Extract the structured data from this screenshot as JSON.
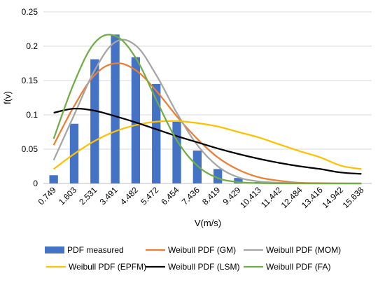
{
  "chart_data": {
    "type": "bar+line",
    "xlabel": "V(m/s)",
    "ylabel": "f(v)",
    "ylim": [
      0,
      0.25
    ],
    "yticks": [
      "0",
      "0.05",
      "0.1",
      "0.15",
      "0.2",
      "0.25"
    ],
    "categories": [
      "0.749",
      "1.603",
      "2.531",
      "3.491",
      "4.482",
      "5.472",
      "6.454",
      "7.436",
      "8.419",
      "9.429",
      "10.413",
      "11.442",
      "12.484",
      "13.416",
      "14.942",
      "15.638"
    ],
    "grid": "horizontal",
    "legend_position": "bottom",
    "series": [
      {
        "name": "PDF measured",
        "kind": "bar",
        "color": "#4472c4",
        "values": [
          0.012,
          0.087,
          0.181,
          0.217,
          0.184,
          0.145,
          0.09,
          0.048,
          0.021,
          0.008,
          0.002,
          0.001,
          0,
          0,
          0,
          0
        ]
      },
      {
        "name": "Weibull PDF (GM)",
        "kind": "line",
        "color": "#ed7d31",
        "values": [
          0.056,
          0.113,
          0.158,
          0.175,
          0.165,
          0.135,
          0.098,
          0.065,
          0.038,
          0.02,
          0.009,
          0.004,
          0.001,
          0.0005,
          0.0001,
          0
        ]
      },
      {
        "name": "Weibull PDF (MOM)",
        "kind": "line",
        "color": "#a5a5a5",
        "values": [
          0.034,
          0.1,
          0.165,
          0.206,
          0.201,
          0.158,
          0.103,
          0.056,
          0.025,
          0.009,
          0.003,
          0.001,
          0.0003,
          0,
          0,
          0
        ]
      },
      {
        "name": "Weibull PDF (EPFM)",
        "kind": "line",
        "color": "#ffc000",
        "values": [
          0.021,
          0.043,
          0.062,
          0.076,
          0.085,
          0.09,
          0.091,
          0.088,
          0.083,
          0.075,
          0.067,
          0.057,
          0.047,
          0.038,
          0.026,
          0.021
        ]
      },
      {
        "name": "Weibull PDF (LSM)",
        "kind": "line",
        "color": "#000000",
        "values": [
          0.103,
          0.109,
          0.106,
          0.098,
          0.089,
          0.079,
          0.069,
          0.06,
          0.051,
          0.043,
          0.036,
          0.03,
          0.025,
          0.021,
          0.016,
          0.014
        ]
      },
      {
        "name": "Weibull PDF (FA)",
        "kind": "line",
        "color": "#70ad47",
        "values": [
          0.065,
          0.147,
          0.205,
          0.215,
          0.183,
          0.122,
          0.063,
          0.026,
          0.008,
          0.002,
          0.0005,
          0.0001,
          0,
          0,
          0,
          0
        ]
      }
    ]
  }
}
